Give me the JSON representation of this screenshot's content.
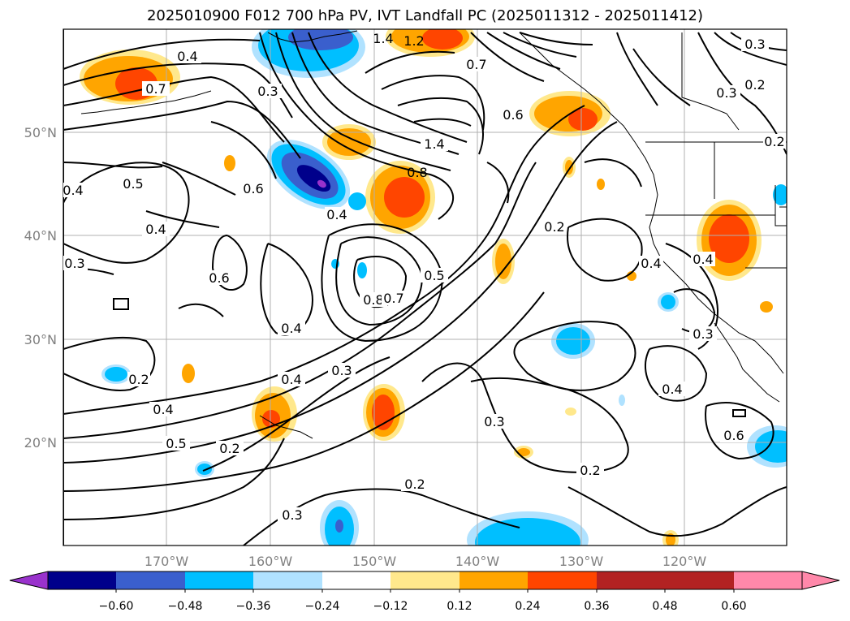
{
  "title": "2025010900 F012 700 hPa PV, IVT Landfall PC (2025011312 - 2025011412)",
  "lat_ticks": [
    "50°N",
    "40°N",
    "30°N",
    "20°N"
  ],
  "lon_ticks": [
    "170°W",
    "160°W",
    "150°W",
    "140°W",
    "130°W",
    "120°W"
  ],
  "colorbar": {
    "ticks": [
      "−0.60",
      "−0.48",
      "−0.36",
      "−0.24",
      "−0.12",
      "0.12",
      "0.24",
      "0.36",
      "0.48",
      "0.60"
    ],
    "colors": [
      "#9932cc",
      "#00008b",
      "#3a5fcd",
      "#00bfff",
      "#b0e2ff",
      "#ffffff",
      "#ffe88c",
      "#ffa500",
      "#ff4500",
      "#b22222",
      "#ff88aa"
    ]
  },
  "contour_labels": {
    "l04a": "0.4",
    "l07a": "0.7",
    "l03a": "0.3",
    "l12": "1.2",
    "l14a": "1.4",
    "l07b": "0.7",
    "l03b": "0.3",
    "l02a": "0.2",
    "l03c": "0.3",
    "l02b": "0.2",
    "l14b": "1.4",
    "l06a": "0.6",
    "l08a": "0.8",
    "l05a": "0.5",
    "l06b": "0.6",
    "l04b": "0.4",
    "l04c": "0.4",
    "l04d": "0.4",
    "l03d": "0.3",
    "l06c": "0.6",
    "l02c": "0.2",
    "l04e": "0.4",
    "l04f": "0.4",
    "l08b": "0.8",
    "l07c": "0.7",
    "l05b": "0.5",
    "l04g": "0.4",
    "l03e": "0.3",
    "l04h": "0.4",
    "l02d": "0.2",
    "l04i": "0.4",
    "l05c": "0.5",
    "l02e": "0.2",
    "l03f": "0.3",
    "l02f": "0.2",
    "l02g": "0.2",
    "l03g": "0.3",
    "l04j": "0.4",
    "l03h": "0.3",
    "l06d": "0.6"
  }
}
